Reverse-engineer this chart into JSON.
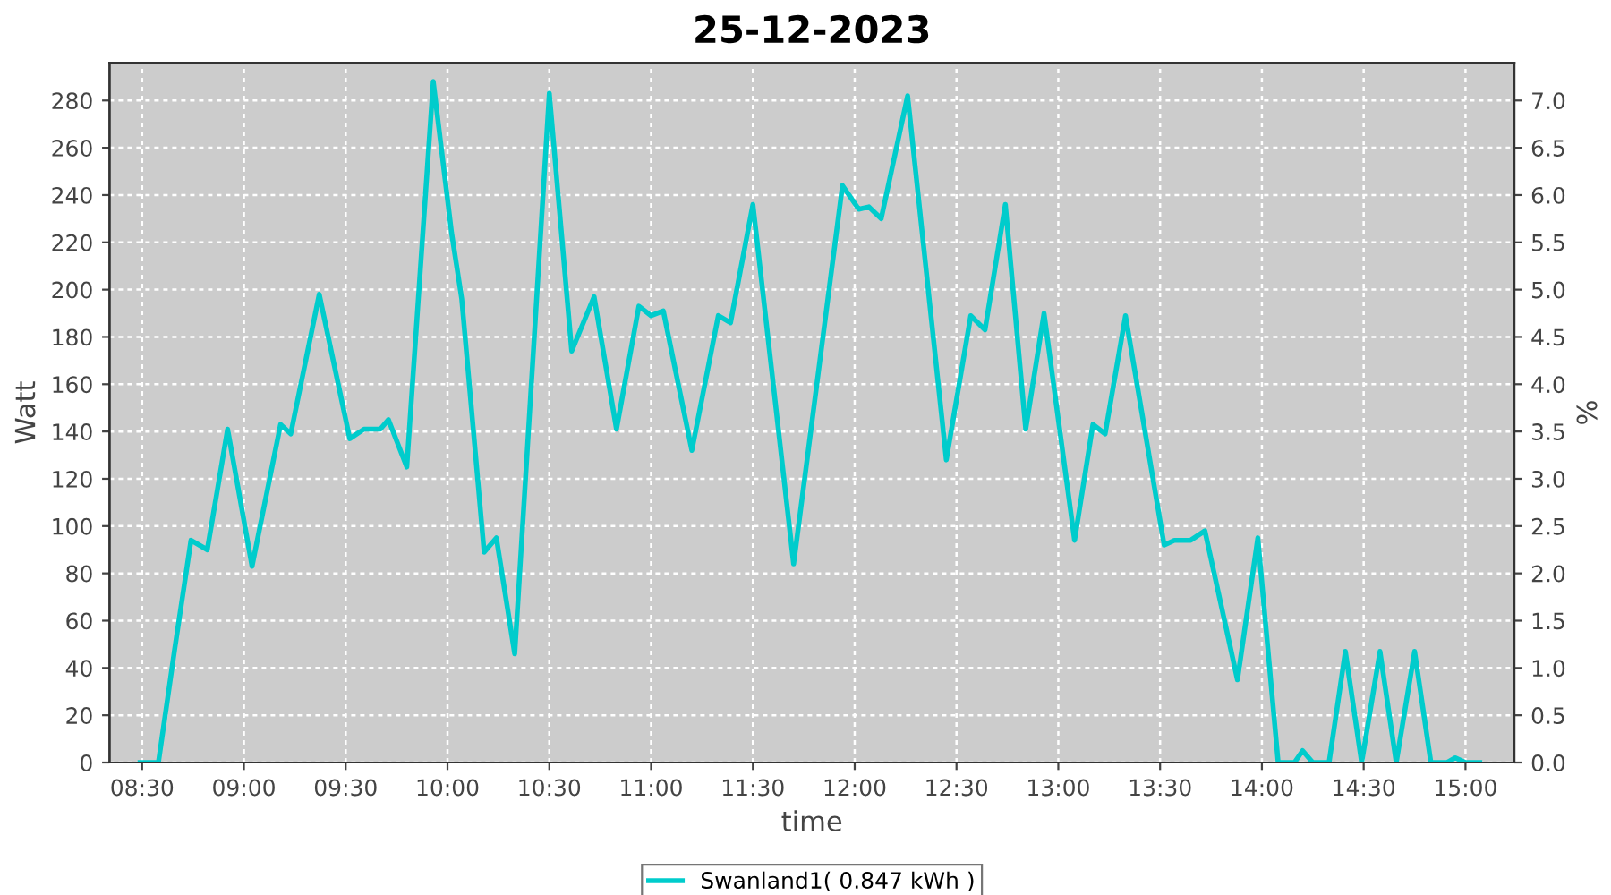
{
  "chart_data": {
    "type": "line",
    "title": "25-12-2023",
    "xlabel": "time",
    "ylabel": "Watt",
    "y2label": "%",
    "x": [
      8.49,
      8.58,
      8.66,
      8.74,
      8.82,
      8.92,
      9.04,
      9.18,
      9.23,
      9.37,
      9.52,
      9.59,
      9.67,
      9.71,
      9.8,
      9.93,
      10.02,
      10.07,
      10.18,
      10.24,
      10.33,
      10.5,
      10.61,
      10.72,
      10.83,
      10.94,
      11.0,
      11.06,
      11.2,
      11.33,
      11.39,
      11.5,
      11.7,
      11.94,
      12.02,
      12.07,
      12.13,
      12.26,
      12.45,
      12.57,
      12.64,
      12.74,
      12.84,
      12.93,
      13.08,
      13.17,
      13.23,
      13.33,
      13.52,
      13.57,
      13.65,
      13.72,
      13.88,
      13.98,
      14.08,
      14.16,
      14.2,
      14.25,
      14.33,
      14.41,
      14.49,
      14.58,
      14.66,
      14.75,
      14.83,
      14.91,
      14.95,
      15.0,
      15.07
    ],
    "series": [
      {
        "name": "Swanland1( 0.847 kWh )",
        "color": "#00cccc",
        "values": [
          0,
          0,
          48,
          94,
          90,
          141,
          83,
          143,
          139,
          198,
          137,
          141,
          141,
          145,
          125,
          288,
          224,
          196,
          89,
          95,
          46,
          283,
          174,
          197,
          141,
          193,
          189,
          191,
          132,
          189,
          186,
          236,
          84,
          244,
          234,
          235,
          230,
          282,
          128,
          189,
          183,
          236,
          141,
          190,
          94,
          143,
          139,
          189,
          92,
          94,
          94,
          98,
          35,
          95,
          0,
          0,
          5,
          0,
          0,
          47,
          0,
          47,
          0,
          47,
          0,
          0,
          2,
          0,
          0
        ]
      }
    ],
    "xlim": [
      8.34,
      15.24
    ],
    "xticks": [
      {
        "value": 8.5,
        "label": "08:30"
      },
      {
        "value": 9.0,
        "label": "09:00"
      },
      {
        "value": 9.5,
        "label": "09:30"
      },
      {
        "value": 10.0,
        "label": "10:00"
      },
      {
        "value": 10.5,
        "label": "10:30"
      },
      {
        "value": 11.0,
        "label": "11:00"
      },
      {
        "value": 11.5,
        "label": "11:30"
      },
      {
        "value": 12.0,
        "label": "12:00"
      },
      {
        "value": 12.5,
        "label": "12:30"
      },
      {
        "value": 13.0,
        "label": "13:00"
      },
      {
        "value": 13.5,
        "label": "13:30"
      },
      {
        "value": 14.0,
        "label": "14:00"
      },
      {
        "value": 14.5,
        "label": "14:30"
      },
      {
        "value": 15.0,
        "label": "15:00"
      }
    ],
    "ylim": [
      0,
      296
    ],
    "yticks": [
      0,
      20,
      40,
      60,
      80,
      100,
      120,
      140,
      160,
      180,
      200,
      220,
      240,
      260,
      280
    ],
    "y2lim": [
      0,
      7.4
    ],
    "y2ticks": [
      {
        "value": 0,
        "label": "0.0"
      },
      {
        "value": 0.5,
        "label": "0.5"
      },
      {
        "value": 1,
        "label": "1.0"
      },
      {
        "value": 1.5,
        "label": "1.5"
      },
      {
        "value": 2,
        "label": "2.0"
      },
      {
        "value": 2.5,
        "label": "2.5"
      },
      {
        "value": 3,
        "label": "3.0"
      },
      {
        "value": 3.5,
        "label": "3.5"
      },
      {
        "value": 4,
        "label": "4.0"
      },
      {
        "value": 4.5,
        "label": "4.5"
      },
      {
        "value": 5,
        "label": "5.0"
      },
      {
        "value": 5.5,
        "label": "5.5"
      },
      {
        "value": 6,
        "label": "6.0"
      },
      {
        "value": 6.5,
        "label": "6.5"
      },
      {
        "value": 7,
        "label": "7.0"
      }
    ],
    "grid": true,
    "legend": "bottom",
    "marker": "none",
    "line_style": "solid"
  }
}
